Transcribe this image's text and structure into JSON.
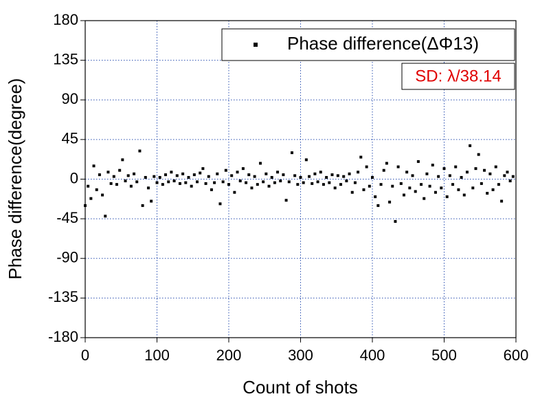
{
  "chart_data": {
    "type": "scatter",
    "x_label": "Count of shots",
    "y_label": "Phase difference(degree)",
    "annotation": "SD: λ/38.14",
    "annotation_color": "#e00000",
    "xlim": [
      0,
      600
    ],
    "xticks": [
      0,
      100,
      200,
      300,
      400,
      500,
      600
    ],
    "ylim": [
      -180,
      180
    ],
    "yticks": [
      -180,
      -135,
      -90,
      -45,
      0,
      45,
      90,
      135,
      180
    ],
    "grid": true,
    "legend": "upper right",
    "series": [
      {
        "name": "Phase difference(ΔΦ13)",
        "color": "#000000",
        "x": [
          0,
          4,
          8,
          12,
          16,
          20,
          24,
          28,
          32,
          36,
          40,
          44,
          48,
          52,
          56,
          60,
          64,
          68,
          72,
          76,
          80,
          84,
          88,
          92,
          96,
          100,
          104,
          108,
          112,
          116,
          120,
          124,
          128,
          132,
          136,
          140,
          144,
          148,
          152,
          156,
          160,
          164,
          168,
          172,
          176,
          180,
          184,
          188,
          192,
          196,
          200,
          204,
          208,
          212,
          216,
          220,
          224,
          228,
          232,
          236,
          240,
          244,
          248,
          252,
          256,
          260,
          264,
          268,
          272,
          276,
          280,
          284,
          288,
          292,
          296,
          300,
          304,
          308,
          312,
          316,
          320,
          324,
          328,
          332,
          336,
          340,
          344,
          348,
          352,
          356,
          360,
          364,
          368,
          372,
          376,
          380,
          384,
          388,
          392,
          396,
          400,
          404,
          408,
          412,
          416,
          420,
          424,
          428,
          432,
          436,
          440,
          444,
          448,
          452,
          456,
          460,
          464,
          468,
          472,
          476,
          480,
          484,
          488,
          492,
          496,
          500,
          504,
          508,
          512,
          516,
          520,
          524,
          528,
          532,
          536,
          540,
          544,
          548,
          552,
          556,
          560,
          564,
          568,
          572,
          576,
          580,
          584,
          588,
          592,
          596
        ],
        "values": [
          -30,
          -8,
          -22,
          15,
          -12,
          5,
          -18,
          -42,
          8,
          -5,
          3,
          -6,
          10,
          22,
          -2,
          4,
          -8,
          6,
          -3,
          32,
          -30,
          2,
          -10,
          -25,
          3,
          -4,
          2,
          -6,
          5,
          -3,
          8,
          -2,
          4,
          -5,
          6,
          -4,
          2,
          -8,
          5,
          -3,
          7,
          12,
          -5,
          3,
          -12,
          -4,
          6,
          -28,
          -3,
          10,
          -6,
          4,
          -15,
          8,
          -2,
          12,
          -4,
          5,
          -10,
          3,
          -6,
          18,
          -3,
          6,
          -8,
          2,
          -4,
          8,
          -2,
          5,
          -24,
          -3,
          30,
          4,
          -6,
          2,
          -4,
          22,
          3,
          -5,
          6,
          -3,
          8,
          -6,
          2,
          -4,
          5,
          -10,
          4,
          -6,
          3,
          -2,
          6,
          -15,
          -4,
          8,
          25,
          -12,
          14,
          -8,
          2,
          -20,
          -30,
          -6,
          10,
          18,
          -26,
          -8,
          -48,
          14,
          -5,
          -18,
          8,
          -10,
          4,
          -14,
          20,
          -6,
          -22,
          6,
          -8,
          16,
          -15,
          3,
          -10,
          12,
          -20,
          4,
          -6,
          14,
          -12,
          2,
          -18,
          8,
          38,
          -10,
          12,
          28,
          -5,
          10,
          -16,
          6,
          -12,
          14,
          -6,
          -25,
          4,
          8,
          -2,
          3
        ]
      }
    ]
  }
}
